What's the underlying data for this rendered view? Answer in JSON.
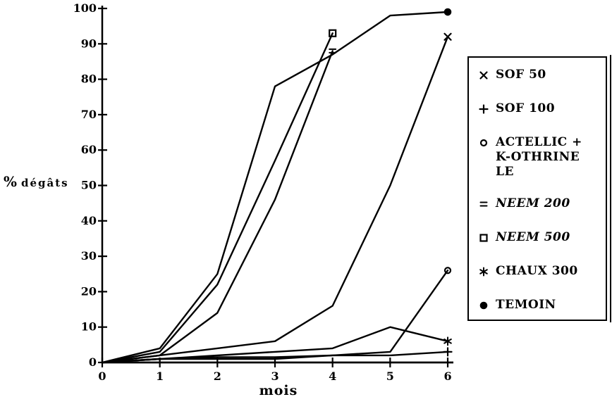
{
  "figure": {
    "background_color": "#ffffff",
    "ink_color": "#000000"
  },
  "chart_data": {
    "type": "line",
    "title": "",
    "xlabel": "mois",
    "ylabel": "% dégâts",
    "xlim": [
      0,
      6
    ],
    "ylim": [
      0,
      100
    ],
    "x_ticks": [
      0,
      1,
      2,
      3,
      4,
      5,
      6
    ],
    "y_ticks": [
      0,
      10,
      20,
      30,
      40,
      50,
      60,
      70,
      80,
      90,
      100
    ],
    "grid": false,
    "legend_position": "right",
    "marker_placement": "end-of-line-only",
    "series": [
      {
        "name": "SOF 50",
        "legend_label": "SOF 50",
        "marker": "x",
        "italic": false,
        "x": [
          0,
          1,
          2,
          3,
          4,
          5,
          6
        ],
        "values": [
          0,
          2,
          4,
          6,
          16,
          50,
          92
        ]
      },
      {
        "name": "SOF 100",
        "legend_label": "SOF 100",
        "marker": "plus",
        "italic": false,
        "x": [
          0,
          1,
          2,
          3,
          4,
          5,
          6
        ],
        "values": [
          0,
          1,
          1.5,
          1.5,
          2,
          2,
          3
        ]
      },
      {
        "name": "ACTELLIC + K-OTHRINE LE",
        "legend_label": "ACTELLIC +\nK-OTHRINE\nLE",
        "marker": "circle-open",
        "italic": false,
        "x": [
          0,
          1,
          2,
          3,
          4,
          5,
          6
        ],
        "values": [
          0,
          1,
          1,
          1,
          2,
          3,
          26
        ]
      },
      {
        "name": "NEEM 200",
        "legend_label": "NEEM 200",
        "marker": "equals",
        "italic": true,
        "x": [
          0,
          1,
          2,
          3,
          4
        ],
        "values": [
          0,
          2,
          14,
          46,
          88
        ]
      },
      {
        "name": "NEEM 500",
        "legend_label": "NEEM 500",
        "marker": "square-open",
        "italic": true,
        "x": [
          0,
          1,
          2,
          3,
          4
        ],
        "values": [
          0,
          3,
          22,
          57,
          93
        ]
      },
      {
        "name": "CHAUX 300",
        "legend_label": "CHAUX 300",
        "marker": "asterisk",
        "italic": false,
        "x": [
          0,
          1,
          2,
          3,
          4,
          5,
          6
        ],
        "values": [
          0,
          1,
          2,
          3,
          4,
          10,
          6
        ]
      },
      {
        "name": "TEMOIN",
        "legend_label": "TEMOIN",
        "marker": "circle-filled",
        "italic": false,
        "x": [
          0,
          1,
          2,
          3,
          4,
          5,
          6
        ],
        "values": [
          0,
          4,
          25,
          78,
          87,
          98,
          99
        ]
      }
    ]
  }
}
